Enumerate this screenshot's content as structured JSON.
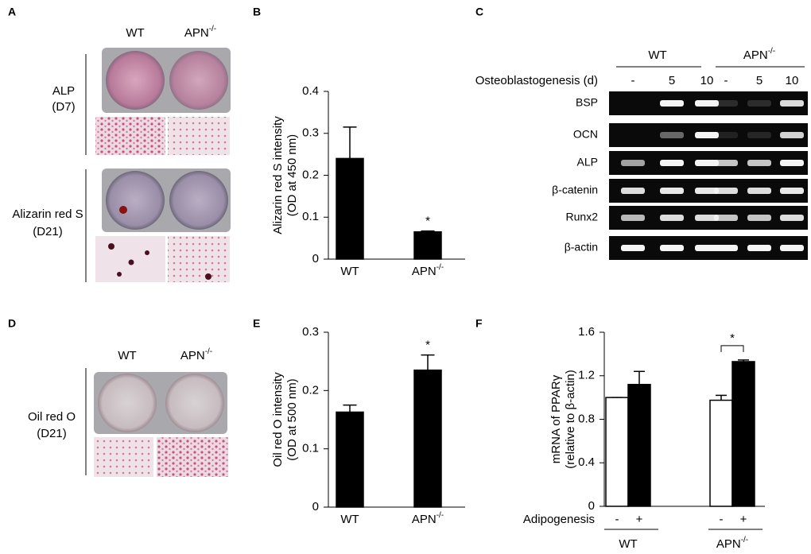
{
  "panels": {
    "A": {
      "letter": "A",
      "columns": [
        "WT",
        "APN-/-"
      ],
      "rows": [
        {
          "label": "ALP",
          "sublabel": "(D7)"
        },
        {
          "label": "Alizarin red S",
          "sublabel": "(D21)"
        }
      ]
    },
    "C": {
      "letter": "C",
      "groups": [
        "WT",
        "APN-/-"
      ],
      "axis_label": "Osteoblastogenesis (d)",
      "lanes": [
        "-",
        "5",
        "10",
        "-",
        "5",
        "10"
      ],
      "genes": [
        "BSP",
        "OCN",
        "ALP",
        "β-catenin",
        "Runx2",
        "β-actin"
      ]
    },
    "D": {
      "letter": "D",
      "columns": [
        "WT",
        "APN-/-"
      ],
      "rows": [
        {
          "label": "Oil red O",
          "sublabel": "(D21)"
        }
      ]
    }
  },
  "chart_data": [
    {
      "type": "bar",
      "panel": "B",
      "y_label": [
        "Alizarin red S intensity",
        "(OD at 450 nm)"
      ],
      "categories": [
        "WT",
        "APN-/-"
      ],
      "values": [
        0.24,
        0.065
      ],
      "errors": [
        0.075,
        0.002
      ],
      "color": "#000000",
      "ylim": [
        0,
        0.4
      ],
      "yticks": [
        0,
        0.1,
        0.2,
        0.3,
        0.4
      ],
      "annotation": "*"
    },
    {
      "type": "bar",
      "panel": "E",
      "y_label": [
        "Oil red O intensity",
        "(OD at 500 nm)"
      ],
      "categories": [
        "WT",
        "APN-/-"
      ],
      "values": [
        0.163,
        0.235
      ],
      "errors": [
        0.012,
        0.026
      ],
      "color": "#000000",
      "ylim": [
        0,
        0.3
      ],
      "yticks": [
        0,
        0.1,
        0.2,
        0.3
      ],
      "annotation": "*"
    },
    {
      "type": "grouped-bar",
      "panel": "F",
      "y_label": [
        "mRNA of PPARγ",
        "(relative to β-actin)"
      ],
      "x_label": "Adipogenesis",
      "categories": [
        "WT",
        "APN-/-"
      ],
      "series": [
        {
          "name": "-",
          "color": "#ffffff",
          "values": [
            1.0,
            0.975
          ],
          "errors": [
            0,
            0.045
          ]
        },
        {
          "name": "+",
          "color": "#000000",
          "values": [
            1.12,
            1.33
          ],
          "errors": [
            0.12,
            0.015
          ]
        }
      ],
      "ylim": [
        0,
        1.6
      ],
      "yticks": [
        0,
        0.4,
        0.8,
        1.2,
        1.6
      ],
      "annotation": "*"
    }
  ]
}
